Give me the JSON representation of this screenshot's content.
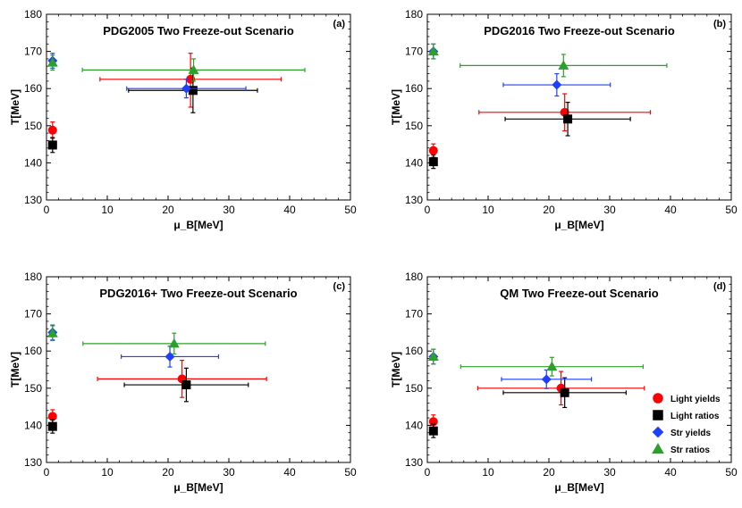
{
  "figure": {
    "series_names": [
      "Light yields",
      "Light ratios",
      "Str yields",
      "Str ratios"
    ],
    "series_colors": [
      "#ff0000",
      "#000000",
      "#1f3fff",
      "#2ca02c"
    ],
    "series_markers": [
      "circle",
      "square",
      "diamond",
      "triangle"
    ],
    "legend_location": "lower-right of panel (d)"
  },
  "chart_data": [
    {
      "type": "scatter",
      "panel_label": "(a)",
      "title": "PDG2005 Two Freeze-out Scenario",
      "xlabel": "μ_B[MeV]",
      "ylabel": "T[MeV]",
      "xlim": [
        0,
        50
      ],
      "ylim": [
        130,
        180
      ],
      "xticks": [
        0,
        10,
        20,
        30,
        40,
        50
      ],
      "yticks": [
        130,
        140,
        150,
        160,
        170,
        180
      ],
      "series": [
        {
          "name": "Light yields",
          "points": [
            {
              "x": 1,
              "y": 148.8,
              "xerr": [
                0,
                0
              ],
              "yerr": [
                2.2,
                2.2
              ]
            },
            {
              "x": 23.7,
              "y": 162.5,
              "xerr": [
                14.9,
                14.9
              ],
              "yerr": [
                7.5,
                7.0
              ]
            }
          ]
        },
        {
          "name": "Light ratios",
          "points": [
            {
              "x": 1,
              "y": 144.8,
              "xerr": [
                0,
                0
              ],
              "yerr": [
                2.0,
                2.0
              ]
            },
            {
              "x": 24.1,
              "y": 159.5,
              "xerr": [
                10.6,
                10.6
              ],
              "yerr": [
                6.0,
                6.0
              ]
            }
          ]
        },
        {
          "name": "Str yields",
          "points": [
            {
              "x": 1,
              "y": 167.5,
              "xerr": [
                0,
                0
              ],
              "yerr": [
                2.0,
                2.0
              ]
            },
            {
              "x": 23.0,
              "y": 160.0,
              "xerr": [
                9.8,
                9.8
              ],
              "yerr": [
                2.5,
                2.5
              ]
            }
          ]
        },
        {
          "name": "Str ratios",
          "points": [
            {
              "x": 1,
              "y": 167.0,
              "xerr": [
                0,
                0
              ],
              "yerr": [
                2.0,
                2.0
              ]
            },
            {
              "x": 24.2,
              "y": 165.0,
              "xerr": [
                18.3,
                18.3
              ],
              "yerr": [
                3.0,
                3.0
              ]
            }
          ]
        }
      ]
    },
    {
      "type": "scatter",
      "panel_label": "(b)",
      "title": "PDG2016 Two Freeze-out Scenario",
      "xlabel": "μ_B[MeV]",
      "ylabel": "T[MeV]",
      "xlim": [
        0,
        50
      ],
      "ylim": [
        130,
        180
      ],
      "xticks": [
        0,
        10,
        20,
        30,
        40,
        50
      ],
      "yticks": [
        130,
        140,
        150,
        160,
        170,
        180
      ],
      "series": [
        {
          "name": "Light yields",
          "points": [
            {
              "x": 1,
              "y": 143.3,
              "xerr": [
                0,
                0
              ],
              "yerr": [
                1.8,
                1.8
              ]
            },
            {
              "x": 22.6,
              "y": 153.6,
              "xerr": [
                14.1,
                14.1
              ],
              "yerr": [
                5.0,
                5.0
              ]
            }
          ]
        },
        {
          "name": "Light ratios",
          "points": [
            {
              "x": 1,
              "y": 140.3,
              "xerr": [
                0,
                0
              ],
              "yerr": [
                1.8,
                1.8
              ]
            },
            {
              "x": 23.1,
              "y": 151.8,
              "xerr": [
                10.3,
                10.3
              ],
              "yerr": [
                4.5,
                4.5
              ]
            }
          ]
        },
        {
          "name": "Str yields",
          "points": [
            {
              "x": 1,
              "y": 170.0,
              "xerr": [
                0,
                0
              ],
              "yerr": [
                2.0,
                2.0
              ]
            },
            {
              "x": 21.3,
              "y": 161.0,
              "xerr": [
                8.8,
                8.8
              ],
              "yerr": [
                3.0,
                3.0
              ]
            }
          ]
        },
        {
          "name": "Str ratios",
          "points": [
            {
              "x": 1,
              "y": 170.0,
              "xerr": [
                0,
                0
              ],
              "yerr": [
                2.0,
                2.0
              ]
            },
            {
              "x": 22.4,
              "y": 166.2,
              "xerr": [
                17.0,
                17.0
              ],
              "yerr": [
                3.0,
                3.0
              ]
            }
          ]
        }
      ]
    },
    {
      "type": "scatter",
      "panel_label": "(c)",
      "title": "PDG2016+ Two Freeze-out Scenario",
      "xlabel": "μ_B[MeV]",
      "ylabel": "T[MeV]",
      "xlim": [
        0,
        50
      ],
      "ylim": [
        130,
        180
      ],
      "xticks": [
        0,
        10,
        20,
        30,
        40,
        50
      ],
      "yticks": [
        130,
        140,
        150,
        160,
        170,
        180
      ],
      "series": [
        {
          "name": "Light yields",
          "points": [
            {
              "x": 1,
              "y": 142.4,
              "xerr": [
                0,
                0
              ],
              "yerr": [
                1.8,
                1.8
              ]
            },
            {
              "x": 22.3,
              "y": 152.5,
              "xerr": [
                13.9,
                13.9
              ],
              "yerr": [
                5.0,
                5.0
              ]
            }
          ]
        },
        {
          "name": "Light ratios",
          "points": [
            {
              "x": 1,
              "y": 139.7,
              "xerr": [
                0,
                0
              ],
              "yerr": [
                1.8,
                1.8
              ]
            },
            {
              "x": 23.0,
              "y": 150.9,
              "xerr": [
                10.2,
                10.2
              ],
              "yerr": [
                4.5,
                4.5
              ]
            }
          ]
        },
        {
          "name": "Str yields",
          "points": [
            {
              "x": 1,
              "y": 165.0,
              "xerr": [
                0,
                0
              ],
              "yerr": [
                2.0,
                2.0
              ]
            },
            {
              "x": 20.3,
              "y": 158.5,
              "xerr": [
                8.0,
                8.0
              ],
              "yerr": [
                2.8,
                2.8
              ]
            }
          ]
        },
        {
          "name": "Str ratios",
          "points": [
            {
              "x": 1,
              "y": 164.8,
              "xerr": [
                0,
                0
              ],
              "yerr": [
                2.0,
                2.0
              ]
            },
            {
              "x": 21.0,
              "y": 162.0,
              "xerr": [
                15.0,
                15.0
              ],
              "yerr": [
                2.8,
                2.8
              ]
            }
          ]
        }
      ]
    },
    {
      "type": "scatter",
      "panel_label": "(d)",
      "title": "QM Two Freeze-out Scenario",
      "xlabel": "μ_B[MeV]",
      "ylabel": "T[MeV]",
      "xlim": [
        0,
        50
      ],
      "ylim": [
        130,
        180
      ],
      "xticks": [
        0,
        10,
        20,
        30,
        40,
        50
      ],
      "yticks": [
        130,
        140,
        150,
        160,
        170,
        180
      ],
      "legend": true,
      "series": [
        {
          "name": "Light yields",
          "points": [
            {
              "x": 1,
              "y": 141.0,
              "xerr": [
                0,
                0
              ],
              "yerr": [
                1.8,
                1.8
              ]
            },
            {
              "x": 22.0,
              "y": 150.0,
              "xerr": [
                13.7,
                13.7
              ],
              "yerr": [
                4.5,
                4.5
              ]
            }
          ]
        },
        {
          "name": "Light ratios",
          "points": [
            {
              "x": 1,
              "y": 138.5,
              "xerr": [
                0,
                0
              ],
              "yerr": [
                1.8,
                1.8
              ]
            },
            {
              "x": 22.6,
              "y": 148.8,
              "xerr": [
                10.1,
                10.1
              ],
              "yerr": [
                4.0,
                4.0
              ]
            }
          ]
        },
        {
          "name": "Str yields",
          "points": [
            {
              "x": 1,
              "y": 158.5,
              "xerr": [
                0,
                0
              ],
              "yerr": [
                2.0,
                2.0
              ]
            },
            {
              "x": 19.6,
              "y": 152.4,
              "xerr": [
                7.4,
                7.4
              ],
              "yerr": [
                2.5,
                2.5
              ]
            }
          ]
        },
        {
          "name": "Str ratios",
          "points": [
            {
              "x": 1,
              "y": 158.5,
              "xerr": [
                0,
                0
              ],
              "yerr": [
                2.0,
                2.0
              ]
            },
            {
              "x": 20.5,
              "y": 155.8,
              "xerr": [
                15.0,
                15.0
              ],
              "yerr": [
                2.5,
                2.5
              ]
            }
          ]
        }
      ]
    }
  ]
}
